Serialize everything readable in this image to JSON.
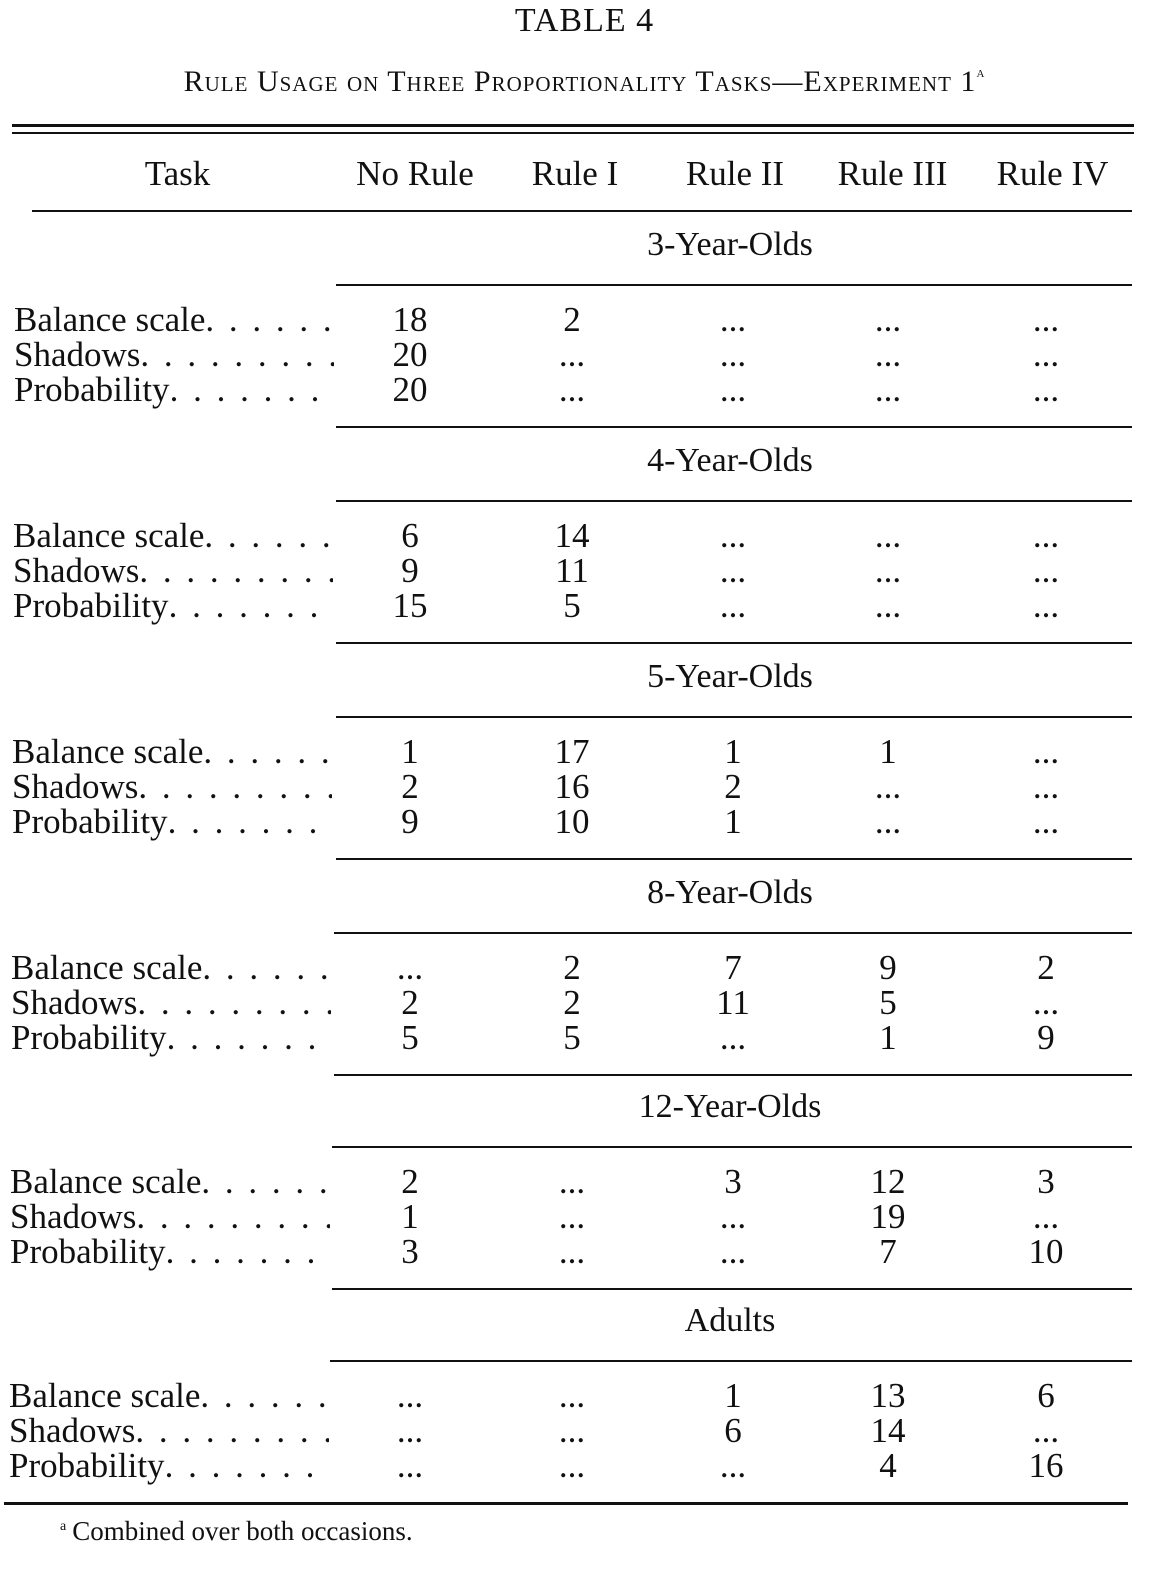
{
  "title": "TABLE 4",
  "subtitle": "Rule Usage on Three Proportionality Tasks—Experiment 1",
  "subtitle_marker": "a",
  "columns": [
    "Task",
    "No Rule",
    "Rule I",
    "Rule II",
    "Rule III",
    "Rule IV"
  ],
  "groups": [
    {
      "label": "3-Year-Olds",
      "rows": [
        {
          "task": "Balance scale",
          "values": [
            "18",
            "2",
            "...",
            "...",
            "..."
          ]
        },
        {
          "task": "Shadows",
          "values": [
            "20",
            "...",
            "...",
            "...",
            "..."
          ]
        },
        {
          "task": "Probability",
          "values": [
            "20",
            "...",
            "...",
            "...",
            "..."
          ]
        }
      ]
    },
    {
      "label": "4-Year-Olds",
      "rows": [
        {
          "task": "Balance scale",
          "values": [
            "6",
            "14",
            "...",
            "...",
            "..."
          ]
        },
        {
          "task": "Shadows",
          "values": [
            "9",
            "11",
            "...",
            "...",
            "..."
          ]
        },
        {
          "task": "Probability",
          "values": [
            "15",
            "5",
            "...",
            "...",
            "..."
          ]
        }
      ]
    },
    {
      "label": "5-Year-Olds",
      "rows": [
        {
          "task": "Balance scale",
          "values": [
            "1",
            "17",
            "1",
            "1",
            "..."
          ]
        },
        {
          "task": "Shadows",
          "values": [
            "2",
            "16",
            "2",
            "...",
            "..."
          ]
        },
        {
          "task": "Probability",
          "values": [
            "9",
            "10",
            "1",
            "...",
            "..."
          ]
        }
      ]
    },
    {
      "label": "8-Year-Olds",
      "rows": [
        {
          "task": "Balance scale",
          "values": [
            "...",
            "2",
            "7",
            "9",
            "2"
          ]
        },
        {
          "task": "Shadows",
          "values": [
            "2",
            "2",
            "11",
            "5",
            "..."
          ]
        },
        {
          "task": "Probability",
          "values": [
            "5",
            "5",
            "...",
            "1",
            "9"
          ]
        }
      ]
    },
    {
      "label": "12-Year-Olds",
      "rows": [
        {
          "task": "Balance scale",
          "values": [
            "2",
            "...",
            "3",
            "12",
            "3"
          ]
        },
        {
          "task": "Shadows",
          "values": [
            "1",
            "...",
            "...",
            "19",
            "..."
          ]
        },
        {
          "task": "Probability",
          "values": [
            "3",
            "...",
            "...",
            "7",
            "10"
          ]
        }
      ]
    },
    {
      "label": "Adults",
      "rows": [
        {
          "task": "Balance scale",
          "values": [
            "...",
            "...",
            "1",
            "13",
            "6"
          ]
        },
        {
          "task": "Shadows",
          "values": [
            "...",
            "...",
            "6",
            "14",
            "..."
          ]
        },
        {
          "task": "Probability",
          "values": [
            "...",
            "...",
            "...",
            "4",
            "16"
          ]
        }
      ]
    }
  ],
  "footnote_marker": "a",
  "footnote": "Combined over both occasions."
}
